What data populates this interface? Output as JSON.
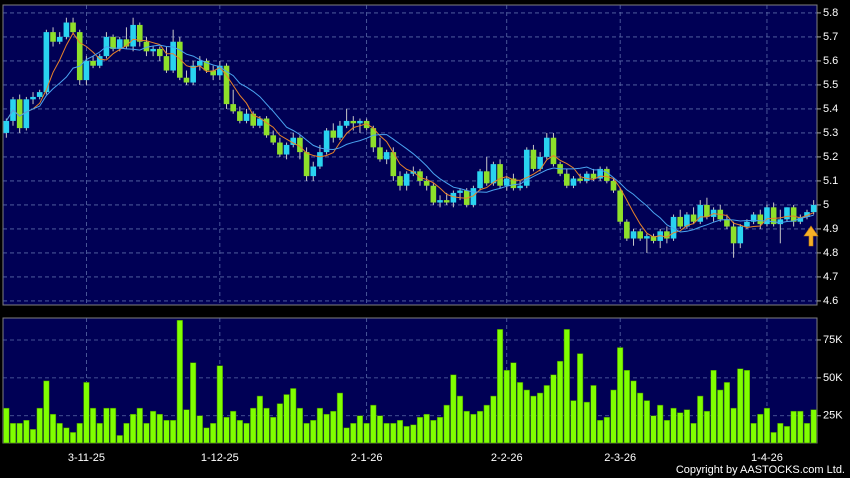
{
  "chart_data": [
    {
      "type": "candlestick",
      "categories": [
        null,
        null,
        null,
        null,
        null,
        null,
        null,
        null,
        null,
        null,
        null,
        null,
        "3-11-25",
        null,
        null,
        null,
        null,
        null,
        null,
        null,
        null,
        null,
        null,
        null,
        null,
        null,
        null,
        null,
        null,
        null,
        null,
        null,
        "1-12-25",
        null,
        null,
        null,
        null,
        null,
        null,
        null,
        null,
        null,
        null,
        null,
        null,
        null,
        null,
        null,
        null,
        null,
        null,
        null,
        null,
        null,
        "2-1-26",
        null,
        null,
        null,
        null,
        null,
        null,
        null,
        null,
        null,
        null,
        null,
        null,
        null,
        null,
        null,
        null,
        null,
        null,
        null,
        null,
        "2-2-26",
        null,
        null,
        null,
        null,
        null,
        null,
        null,
        null,
        null,
        null,
        null,
        null,
        null,
        null,
        null,
        null,
        "2-3-26",
        null,
        null,
        null,
        null,
        null,
        null,
        null,
        null,
        null,
        null,
        null,
        null,
        null,
        null,
        null,
        null,
        null,
        null,
        null,
        null,
        null,
        "1-4-26",
        null,
        null,
        null,
        null,
        null,
        null,
        null
      ],
      "open": [
        5.3,
        5.35,
        5.44,
        5.32,
        5.44,
        5.45,
        5.47,
        5.72,
        5.68,
        5.7,
        5.76,
        5.72,
        5.52,
        5.6,
        5.58,
        5.62,
        5.7,
        5.65,
        5.69,
        5.66,
        5.75,
        5.68,
        5.64,
        5.65,
        5.62,
        5.56,
        5.68,
        5.53,
        5.51,
        5.58,
        5.6,
        5.56,
        5.54,
        5.58,
        5.42,
        5.39,
        5.35,
        5.38,
        5.33,
        5.36,
        5.29,
        5.26,
        5.21,
        5.25,
        5.28,
        5.22,
        5.12,
        5.16,
        5.22,
        5.31,
        5.28,
        5.33,
        5.35,
        5.34,
        5.35,
        5.32,
        5.24,
        5.19,
        5.22,
        5.12,
        5.08,
        5.13,
        5.14,
        5.1,
        5.08,
        5.01,
        5.02,
        5.01,
        5.05,
        5.06,
        5.0,
        5.07,
        5.14,
        5.09,
        5.17,
        5.08,
        5.11,
        5.07,
        5.08,
        5.23,
        5.15,
        5.2,
        5.28,
        5.17,
        5.13,
        5.08,
        5.11,
        5.1,
        5.13,
        5.11,
        5.15,
        5.1,
        5.06,
        4.93,
        4.86,
        4.89,
        4.86,
        4.87,
        4.85,
        4.89,
        4.86,
        4.95,
        4.91,
        4.96,
        4.93,
        5.0,
        4.95,
        4.98,
        4.94,
        4.91,
        4.84,
        4.91,
        4.93,
        4.96,
        4.92,
        4.99,
        4.92,
        4.94,
        4.99,
        4.93,
        4.95,
        4.97
      ],
      "high": [
        5.36,
        5.45,
        5.46,
        5.45,
        5.47,
        5.48,
        5.73,
        5.74,
        5.72,
        5.78,
        5.78,
        5.73,
        5.62,
        5.62,
        5.63,
        5.72,
        5.71,
        5.7,
        5.74,
        5.78,
        5.76,
        5.7,
        5.66,
        5.66,
        5.66,
        5.73,
        5.7,
        5.56,
        5.6,
        5.62,
        5.61,
        5.58,
        5.6,
        5.59,
        5.48,
        5.41,
        5.4,
        5.39,
        5.37,
        5.37,
        5.31,
        5.28,
        5.26,
        5.3,
        5.29,
        5.24,
        5.18,
        5.25,
        5.32,
        5.34,
        5.35,
        5.4,
        5.37,
        5.36,
        5.36,
        5.33,
        5.28,
        5.23,
        5.24,
        5.14,
        5.14,
        5.16,
        5.15,
        5.12,
        5.09,
        5.04,
        5.05,
        5.06,
        5.07,
        5.07,
        5.08,
        5.15,
        5.2,
        5.18,
        5.19,
        5.12,
        5.13,
        5.1,
        5.24,
        5.25,
        5.22,
        5.3,
        5.3,
        5.18,
        5.15,
        5.12,
        5.13,
        5.14,
        5.15,
        5.16,
        5.16,
        5.11,
        5.07,
        4.94,
        4.9,
        4.9,
        4.88,
        4.88,
        4.9,
        4.91,
        4.96,
        4.98,
        4.97,
        4.99,
        5.02,
        5.03,
        4.99,
        5.0,
        4.96,
        4.93,
        4.92,
        4.94,
        4.97,
        4.98,
        5.0,
        5.01,
        4.98,
        4.99,
        5.0,
        4.96,
        4.98,
        5.02
      ],
      "low": [
        5.28,
        5.33,
        5.3,
        5.31,
        5.42,
        5.44,
        5.46,
        5.66,
        5.67,
        5.69,
        5.71,
        5.5,
        5.5,
        5.57,
        5.57,
        5.61,
        5.64,
        5.64,
        5.65,
        5.64,
        5.66,
        5.62,
        5.62,
        5.6,
        5.55,
        5.55,
        5.52,
        5.5,
        5.5,
        5.56,
        5.55,
        5.52,
        5.52,
        5.4,
        5.38,
        5.34,
        5.34,
        5.32,
        5.32,
        5.28,
        5.25,
        5.2,
        5.19,
        5.24,
        5.19,
        5.1,
        5.1,
        5.15,
        5.21,
        5.26,
        5.27,
        5.32,
        5.31,
        5.3,
        5.31,
        5.22,
        5.18,
        5.17,
        5.1,
        5.06,
        5.06,
        5.12,
        5.08,
        5.06,
        5.0,
        4.99,
        5.0,
        4.99,
        5.02,
        4.99,
        4.99,
        5.06,
        5.08,
        5.08,
        5.07,
        5.06,
        5.06,
        5.06,
        5.07,
        5.14,
        5.14,
        5.19,
        5.16,
        5.12,
        5.07,
        5.07,
        5.09,
        5.09,
        5.1,
        5.1,
        5.09,
        5.05,
        4.92,
        4.85,
        4.83,
        4.85,
        4.8,
        4.84,
        4.82,
        4.84,
        4.85,
        4.9,
        4.9,
        4.92,
        4.92,
        4.94,
        4.93,
        4.93,
        4.9,
        4.78,
        4.82,
        4.9,
        4.92,
        4.9,
        4.91,
        4.91,
        4.84,
        4.93,
        4.91,
        4.92,
        4.94,
        4.96
      ],
      "close": [
        5.35,
        5.44,
        5.32,
        5.44,
        5.45,
        5.47,
        5.72,
        5.68,
        5.7,
        5.76,
        5.72,
        5.52,
        5.6,
        5.58,
        5.62,
        5.7,
        5.65,
        5.69,
        5.66,
        5.75,
        5.68,
        5.64,
        5.65,
        5.62,
        5.56,
        5.68,
        5.53,
        5.51,
        5.58,
        5.6,
        5.56,
        5.54,
        5.58,
        5.42,
        5.39,
        5.35,
        5.38,
        5.33,
        5.36,
        5.29,
        5.26,
        5.21,
        5.25,
        5.28,
        5.22,
        5.12,
        5.16,
        5.22,
        5.31,
        5.28,
        5.33,
        5.35,
        5.34,
        5.35,
        5.32,
        5.24,
        5.19,
        5.22,
        5.12,
        5.08,
        5.13,
        5.14,
        5.1,
        5.08,
        5.01,
        5.02,
        5.01,
        5.05,
        5.06,
        5.0,
        5.07,
        5.14,
        5.09,
        5.17,
        5.08,
        5.11,
        5.07,
        5.08,
        5.23,
        5.15,
        5.2,
        5.28,
        5.17,
        5.13,
        5.08,
        5.11,
        5.1,
        5.13,
        5.11,
        5.15,
        5.1,
        5.06,
        4.93,
        4.86,
        4.89,
        4.86,
        4.87,
        4.85,
        4.89,
        4.86,
        4.95,
        4.91,
        4.96,
        4.93,
        5.0,
        4.95,
        4.98,
        4.94,
        4.91,
        4.84,
        4.91,
        4.93,
        4.96,
        4.92,
        4.99,
        4.92,
        4.94,
        4.99,
        4.93,
        4.95,
        4.97,
        5.0
      ],
      "up_color": "#29d3f0",
      "down_color": "#8ee02a",
      "overlays": [
        {
          "type": "sma",
          "period": 5,
          "color": "#e8822a"
        },
        {
          "type": "sma",
          "period": 10,
          "color": "#4aa3f0"
        }
      ],
      "ylim": [
        4.583,
        5.833
      ],
      "yticks": [
        4.6,
        4.7,
        4.8,
        4.9,
        5,
        5.1,
        5.2,
        5.3,
        5.4,
        5.5,
        5.6,
        5.7,
        5.8
      ],
      "grid": true
    },
    {
      "type": "bar",
      "values": [
        30000,
        20000,
        20000,
        22000,
        16000,
        30000,
        48000,
        26000,
        20000,
        17000,
        14000,
        20000,
        47000,
        30000,
        20000,
        30000,
        30000,
        12000,
        20000,
        26000,
        30000,
        20000,
        28000,
        26000,
        22000,
        22000,
        88000,
        29000,
        60000,
        25000,
        17000,
        20000,
        58000,
        24000,
        28000,
        22000,
        20000,
        30000,
        38000,
        30000,
        24000,
        33000,
        39000,
        43000,
        30000,
        20000,
        22000,
        30000,
        26000,
        28000,
        40000,
        17000,
        20000,
        25000,
        20000,
        32000,
        25000,
        20000,
        20000,
        22000,
        18000,
        19000,
        24000,
        26000,
        22000,
        24000,
        32000,
        52000,
        38000,
        28000,
        26000,
        28000,
        32000,
        38000,
        82000,
        55000,
        60000,
        47000,
        42000,
        38000,
        40000,
        45000,
        52000,
        61000,
        82000,
        35000,
        66000,
        34000,
        45000,
        22000,
        24000,
        42000,
        70000,
        55000,
        48000,
        40000,
        35000,
        25000,
        32000,
        22000,
        30000,
        27000,
        29000,
        20000,
        38000,
        28000,
        55000,
        42000,
        47000,
        30000,
        56000,
        55000,
        20000,
        26000,
        30000,
        14000,
        20000,
        18000,
        28000,
        28000,
        20000,
        29000
      ],
      "color": "#80ff00",
      "ylim": [
        7000,
        89500
      ],
      "yticks": [
        {
          "value": 25000,
          "label": "25K"
        },
        {
          "value": 50000,
          "label": "50K"
        },
        {
          "value": 75000,
          "label": "75K"
        }
      ],
      "grid": true
    }
  ],
  "footer": "Copyright by AASTOCKS.com Ltd."
}
